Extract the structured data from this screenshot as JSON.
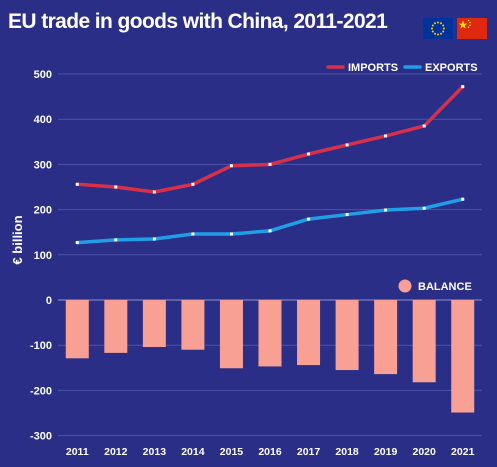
{
  "header": {
    "title": "EU trade in goods with China, 2011-2021"
  },
  "flags": [
    {
      "name": "eu-flag",
      "colors": {
        "field": "#003399",
        "stars": "#FFCC00"
      }
    },
    {
      "name": "china-flag",
      "colors": {
        "field": "#DE2910",
        "stars": "#FFDE00"
      }
    }
  ],
  "colors": {
    "background": "#2B2E86",
    "imports": "#D9304A",
    "exports": "#1F9FE8",
    "balance": "#F7A093",
    "grid": "#4F52A8",
    "text": "#FFFFFF"
  },
  "chart_data": {
    "type": "line",
    "ylabel": "€ billion",
    "ylim": [
      -300,
      500
    ],
    "yticks": [
      -300,
      -200,
      -100,
      0,
      100,
      200,
      300,
      400,
      500
    ],
    "categories": [
      "2011",
      "2012",
      "2013",
      "2014",
      "2015",
      "2016",
      "2017",
      "2018",
      "2019",
      "2020",
      "2021"
    ],
    "grid": true,
    "legend_position": "top-right",
    "series": [
      {
        "name": "IMPORTS",
        "type": "line",
        "values": [
          256,
          250,
          239,
          256,
          297,
          300,
          323,
          343,
          363,
          385,
          472
        ]
      },
      {
        "name": "EXPORTS",
        "type": "line",
        "values": [
          127,
          133,
          135,
          146,
          146,
          153,
          179,
          189,
          199,
          203,
          223
        ]
      },
      {
        "name": "BALANCE",
        "type": "bar",
        "values": [
          -129,
          -117,
          -104,
          -110,
          -151,
          -147,
          -144,
          -155,
          -164,
          -182,
          -249
        ]
      }
    ]
  }
}
